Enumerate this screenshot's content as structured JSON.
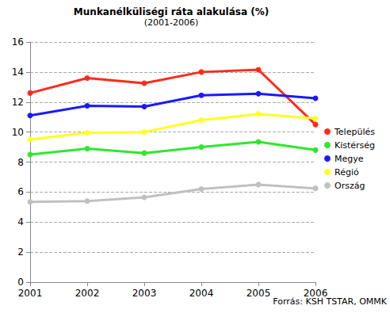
{
  "chart_data": {
    "type": "line",
    "title": "Munkanélküliségi ráta alakulása (%)",
    "subtitle": "(2001-2006)",
    "source": "Forrás: KSH TSTAR, OMMK",
    "categories": [
      "2001",
      "2002",
      "2003",
      "2004",
      "2005",
      "2006"
    ],
    "series": [
      {
        "name": "Település",
        "color": "#ff2a1a",
        "values": [
          12.6,
          13.6,
          13.25,
          14.0,
          14.15,
          10.5
        ]
      },
      {
        "name": "Kistérség",
        "color": "#2ee82e",
        "values": [
          8.5,
          8.9,
          8.6,
          9.0,
          9.35,
          8.8
        ]
      },
      {
        "name": "Megye",
        "color": "#1a1aff",
        "values": [
          11.1,
          11.75,
          11.7,
          12.45,
          12.55,
          12.25
        ]
      },
      {
        "name": "Régió",
        "color": "#ffff22",
        "values": [
          9.5,
          9.95,
          10.0,
          10.8,
          11.2,
          10.9
        ]
      },
      {
        "name": "Ország",
        "color": "#c0c0c0",
        "values": [
          5.35,
          5.4,
          5.65,
          6.2,
          6.5,
          6.25
        ]
      }
    ],
    "ylim": [
      0,
      16
    ],
    "yticks": [
      0,
      2,
      4,
      6,
      8,
      10,
      12,
      14,
      16
    ],
    "grid": true,
    "legend": "right",
    "marker": "circle"
  }
}
